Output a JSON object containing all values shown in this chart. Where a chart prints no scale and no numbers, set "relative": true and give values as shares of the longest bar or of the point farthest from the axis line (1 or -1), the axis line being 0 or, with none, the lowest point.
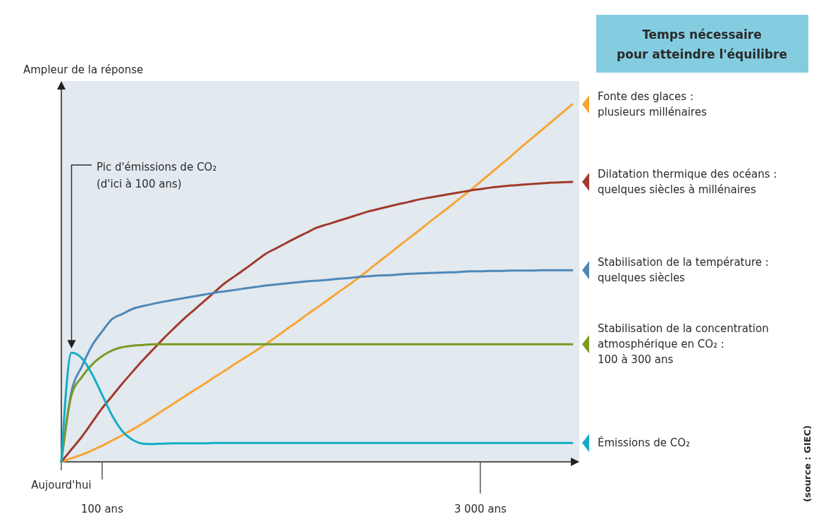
{
  "chart_data": {
    "type": "line",
    "relative": true,
    "ylabel": "Ampleur de la réponse",
    "legend": "right",
    "marker": "none",
    "line_style": "solid",
    "categories": [
      "Aujourd'hui",
      null,
      null,
      null,
      "100 ans",
      null,
      null,
      null,
      null,
      null,
      null,
      null,
      null,
      null,
      null,
      null,
      null,
      null,
      null,
      null,
      null,
      null,
      null,
      null,
      null,
      null,
      null,
      null,
      null,
      null,
      null,
      null,
      null,
      null,
      null,
      null,
      null,
      null,
      null,
      null,
      null,
      "3 000 ans",
      null,
      null,
      null,
      null,
      null,
      null,
      null,
      null,
      null
    ],
    "annotations": [
      "Temps nécessaire\npour atteindre l'équilibre",
      "Pic d'émissions de CO₂\n(d'ici à 100 ans)",
      "(source : GIEC)"
    ],
    "series": [
      {
        "name": "Fonte des glaces :\nplusieurs millénaires",
        "color": "#f7a535",
        "values": [
          0,
          0.01,
          0.02,
          0.032,
          0.045,
          0.06,
          0.075,
          0.091,
          0.108,
          0.126,
          0.145,
          0.163,
          0.182,
          0.2,
          0.218,
          0.237,
          0.255,
          0.274,
          0.292,
          0.31,
          0.329,
          0.349,
          0.37,
          0.39,
          0.411,
          0.431,
          0.451,
          0.472,
          0.492,
          0.513,
          0.535,
          0.558,
          0.58,
          0.603,
          0.625,
          0.647,
          0.67,
          0.692,
          0.714,
          0.737,
          0.759,
          0.783,
          0.807,
          0.831,
          0.855,
          0.88,
          0.904,
          0.928,
          0.952,
          0.976,
          1
        ]
      },
      {
        "name": "Dilatation thermique des océans :\nquelques siècles à millénaires",
        "color": "#a23a2c",
        "values": [
          0,
          0.035,
          0.07,
          0.11,
          0.15,
          0.185,
          0.22,
          0.253,
          0.285,
          0.315,
          0.345,
          0.373,
          0.4,
          0.425,
          0.45,
          0.475,
          0.5,
          0.52,
          0.54,
          0.561,
          0.582,
          0.597,
          0.612,
          0.627,
          0.641,
          0.655,
          0.664,
          0.673,
          0.682,
          0.691,
          0.7,
          0.707,
          0.714,
          0.721,
          0.727,
          0.734,
          0.739,
          0.744,
          0.749,
          0.754,
          0.759,
          0.763,
          0.767,
          0.77,
          0.773,
          0.775,
          0.777,
          0.779,
          0.781,
          0.782,
          0.783
        ]
      },
      {
        "name": "Stabilisation de la température :\nquelques siècles",
        "color": "#4f88b8",
        "values": [
          0,
          0.197,
          0.266,
          0.325,
          0.365,
          0.4,
          0.414,
          0.428,
          0.436,
          0.442,
          0.448,
          0.453,
          0.458,
          0.463,
          0.468,
          0.473,
          0.477,
          0.481,
          0.485,
          0.489,
          0.493,
          0.496,
          0.499,
          0.502,
          0.505,
          0.507,
          0.509,
          0.512,
          0.514,
          0.517,
          0.519,
          0.521,
          0.522,
          0.524,
          0.526,
          0.527,
          0.528,
          0.529,
          0.53,
          0.531,
          0.533,
          0.533,
          0.534,
          0.534,
          0.535,
          0.535,
          0.535,
          0.536,
          0.536,
          0.536,
          0.536
        ]
      },
      {
        "name": "Stabilisation de la concentration\natmosphérique en CO₂ :\n100 à 300 ans",
        "color": "#7a9a22",
        "values": [
          0,
          0.187,
          0.237,
          0.272,
          0.296,
          0.312,
          0.321,
          0.325,
          0.327,
          0.329,
          0.329,
          0.329,
          0.329,
          0.329,
          0.329,
          0.329,
          0.329,
          0.329,
          0.329,
          0.329,
          0.329,
          0.329,
          0.329,
          0.329,
          0.329,
          0.329,
          0.329,
          0.329,
          0.329,
          0.329,
          0.329,
          0.329,
          0.329,
          0.329,
          0.329,
          0.329,
          0.329,
          0.329,
          0.329,
          0.329,
          0.329,
          0.329,
          0.329,
          0.329,
          0.329,
          0.329,
          0.329,
          0.329,
          0.329,
          0.329,
          0.329
        ]
      },
      {
        "name": "Émissions de CO₂",
        "color": "#14adc6",
        "values": [
          0,
          0.305,
          0.29,
          0.246,
          0.187,
          0.128,
          0.085,
          0.061,
          0.051,
          0.05,
          0.051,
          0.052,
          0.052,
          0.052,
          0.052,
          0.053,
          0.053,
          0.053,
          0.053,
          0.053,
          0.053,
          0.053,
          0.053,
          0.053,
          0.053,
          0.053,
          0.053,
          0.053,
          0.053,
          0.053,
          0.053,
          0.053,
          0.053,
          0.053,
          0.053,
          0.053,
          0.053,
          0.053,
          0.053,
          0.053,
          0.053,
          0.053,
          0.053,
          0.053,
          0.053,
          0.053,
          0.053,
          0.053,
          0.053,
          0.053,
          0.053
        ]
      }
    ]
  }
}
